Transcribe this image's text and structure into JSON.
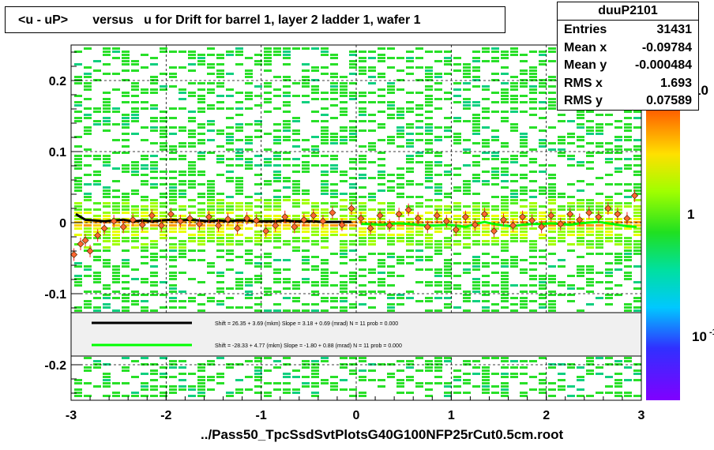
{
  "title": "<u - uP>       versus   u for Drift for barrel 1, layer 2 ladder 1, wafer 1",
  "stats": {
    "name": "duuP2101",
    "rows": [
      {
        "label": "Entries",
        "value": "31431"
      },
      {
        "label": "Mean x",
        "value": "-0.09784"
      },
      {
        "label": "Mean y",
        "value": "-0.000484"
      },
      {
        "label": "RMS x",
        "value": "1.693"
      },
      {
        "label": "RMS y",
        "value": "0.07589"
      }
    ]
  },
  "footer": "../Pass50_TpcSsdSvtPlotsG40G100NFP25rCut0.5cm.root",
  "colorbar": {
    "labels": [
      "10",
      "1",
      "10"
    ],
    "label_sup": [
      "",
      "",
      "-1"
    ]
  },
  "legend": {
    "entries": [
      {
        "color": "#000000",
        "text": "Shift =    26.35 + 3.69 (mkm) Slope =    3.18 + 0.69 (mrad)  N = 11 prob = 0.000"
      },
      {
        "color": "#00ff00",
        "text": "Shift =   -28.33 + 4.77 (mkm) Slope =   -1.80 + 0.88 (mrad)  N = 11 prob = 0.000"
      }
    ]
  },
  "colors": {
    "black_fit": "#000000",
    "green_fit": "#00ff00",
    "points": "#ff6633"
  },
  "chart_data": {
    "type": "heatmap",
    "xlim": [
      -3,
      3
    ],
    "ylim": [
      -0.25,
      0.25
    ],
    "xticks": [
      -3,
      -2,
      -1,
      0,
      1,
      2,
      3
    ],
    "xtick_labels": [
      "-3",
      "-2",
      "-1",
      "0",
      "1",
      "2",
      "3"
    ],
    "yticks": [
      -0.2,
      -0.1,
      0,
      0.1,
      0.2
    ],
    "ytick_labels": [
      "-0.2",
      "-0.1",
      "0",
      "0.1",
      "0.2"
    ],
    "grid": true,
    "series": [
      {
        "x": [
          -2.95,
          -2.85,
          -2.75,
          -2.65,
          -2.55,
          -2.45,
          -2.35,
          -2.25,
          -2.15,
          -2.05,
          -1.95,
          -1.85,
          -1.75,
          -1.65,
          -1.55,
          -1.45,
          -1.35,
          -1.25,
          -1.15,
          -1.05,
          -0.95,
          -0.85,
          -0.75,
          -0.65,
          -0.55,
          -0.45,
          -0.35,
          -0.25,
          -0.15,
          -0.05
        ],
        "y": [
          0.012,
          0.004,
          0.003,
          0.002,
          0.003,
          0.004,
          0.002,
          0.003,
          0.002,
          0.003,
          0.004,
          0.003,
          0.004,
          0.003,
          0.002,
          0.003,
          0.002,
          0.003,
          0.003,
          0.002,
          0.002,
          0.002,
          0.003,
          0.002,
          0.002,
          0.002,
          0.001,
          0.001,
          0.001,
          0.001
        ]
      },
      {
        "x": [
          0.05,
          0.15,
          0.25,
          0.35,
          0.45,
          0.55,
          0.65,
          0.75,
          0.85,
          0.95,
          1.05,
          1.15,
          1.25,
          1.35,
          1.45,
          1.55,
          1.65,
          1.75,
          1.85,
          1.95,
          2.05,
          2.15,
          2.25,
          2.35,
          2.45,
          2.55,
          2.65,
          2.75,
          2.85,
          2.95
        ],
        "y": [
          -0.002,
          -0.002,
          -0.003,
          -0.002,
          -0.001,
          -0.002,
          -0.003,
          -0.004,
          -0.004,
          -0.003,
          -0.004,
          -0.006,
          -0.002,
          0.001,
          -0.002,
          -0.004,
          -0.005,
          -0.003,
          -0.002,
          -0.002,
          -0.001,
          -0.002,
          -0.003,
          -0.001,
          0.0,
          0.001,
          -0.001,
          -0.003,
          -0.005,
          -0.006
        ]
      },
      {
        "x": [
          -2.97,
          -2.9,
          -2.85,
          -2.8,
          -2.72,
          -2.65,
          -2.55,
          -2.45,
          -2.35,
          -2.25,
          -2.15,
          -2.05,
          -1.95,
          -1.85,
          -1.75,
          -1.65,
          -1.55,
          -1.45,
          -1.35,
          -1.25,
          -1.15,
          -1.05,
          -0.95,
          -0.85,
          -0.75,
          -0.65,
          -0.55,
          -0.45,
          -0.35,
          -0.25,
          -0.15,
          -0.05,
          0.05,
          0.15,
          0.25,
          0.35,
          0.45,
          0.55,
          0.65,
          0.75,
          0.85,
          0.95,
          1.05,
          1.15,
          1.25,
          1.35,
          1.45,
          1.55,
          1.65,
          1.75,
          1.85,
          1.95,
          2.05,
          2.15,
          2.25,
          2.35,
          2.45,
          2.55,
          2.65,
          2.75,
          2.85,
          2.93
        ],
        "y": [
          -0.045,
          -0.03,
          -0.025,
          -0.04,
          -0.018,
          -0.008,
          0.002,
          -0.006,
          0.004,
          -0.003,
          0.01,
          -0.004,
          0.012,
          0.002,
          0.006,
          -0.002,
          0.008,
          -0.004,
          0.005,
          -0.008,
          0.006,
          0.003,
          -0.012,
          -0.004,
          0.008,
          -0.006,
          0.004,
          0.01,
          0.002,
          0.014,
          -0.003,
          0.02,
          0.006,
          -0.008,
          0.01,
          -0.004,
          0.012,
          0.018,
          0.006,
          -0.006,
          0.01,
          0.002,
          -0.01,
          0.008,
          -0.003,
          0.012,
          -0.012,
          0.004,
          -0.004,
          0.008,
          0.003,
          -0.006,
          0.01,
          -0.002,
          0.012,
          0.004,
          0.014,
          0.008,
          0.02,
          0.012,
          0.006,
          0.038
        ]
      }
    ]
  }
}
